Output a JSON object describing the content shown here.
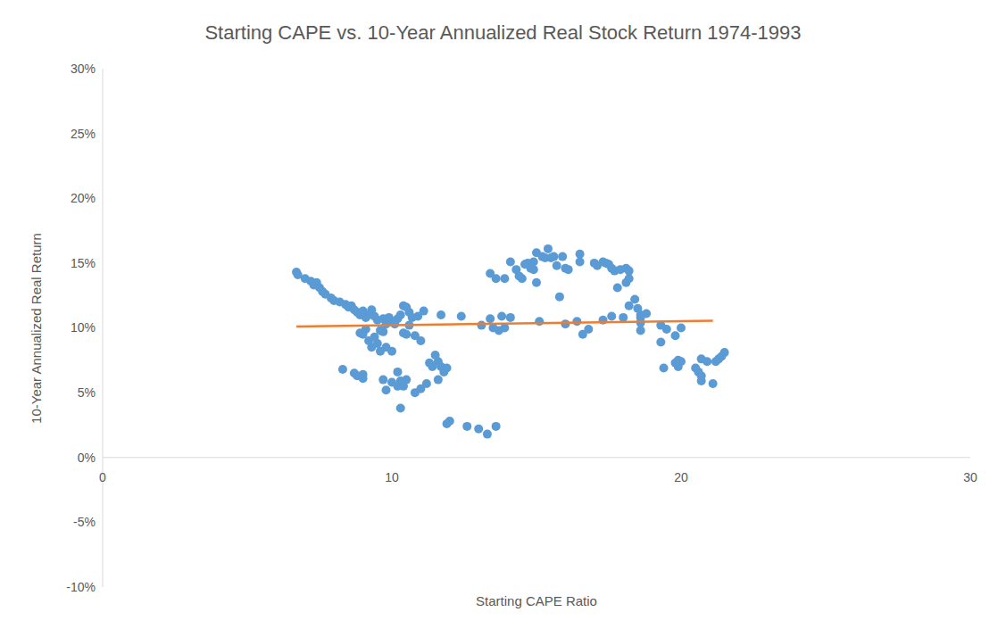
{
  "chart_data": {
    "type": "scatter",
    "title": "Starting CAPE vs. 10-Year Annualized Real Stock Return 1974-1993",
    "x_label": "Starting CAPE Ratio",
    "y_label": "10-Year Annualized Real Return",
    "xlim": [
      0,
      30
    ],
    "xticks": [
      0,
      10,
      20,
      30
    ],
    "ylim": [
      -10,
      30
    ],
    "yticks": [
      {
        "value": -10,
        "label": "-10%"
      },
      {
        "value": -5,
        "label": "-5%"
      },
      {
        "value": 0,
        "label": "0%"
      },
      {
        "value": 5,
        "label": "5%"
      },
      {
        "value": 10,
        "label": "10%"
      },
      {
        "value": 15,
        "label": "15%"
      },
      {
        "value": 20,
        "label": "20%"
      },
      {
        "value": 25,
        "label": "25%"
      },
      {
        "value": 30,
        "label": "30%"
      }
    ],
    "grid": false,
    "series": [
      {
        "type": "scatter",
        "color": "#5b9bd5",
        "marker": "circle",
        "x": [
          6.7,
          6.75,
          7.0,
          7.2,
          7.3,
          7.4,
          7.5,
          7.6,
          7.7,
          7.9,
          8.0,
          8.2,
          8.4,
          8.5,
          8.6,
          8.7,
          8.8,
          8.9,
          9.0,
          9.1,
          9.2,
          9.3,
          9.4,
          9.5,
          9.7,
          9.9,
          10.0,
          10.2,
          10.3,
          10.4,
          10.5,
          10.6,
          10.7,
          10.9,
          11.1,
          10.1,
          9.8,
          9.6,
          8.9,
          9.0,
          9.1,
          9.2,
          9.3,
          9.5,
          9.6,
          9.4,
          9.8,
          10.0,
          9.7,
          10.4,
          10.5,
          10.8,
          11.0,
          10.6,
          8.3,
          8.7,
          8.8,
          9.0,
          9.0,
          9.7,
          9.8,
          10.0,
          10.2,
          10.3,
          10.2,
          10.4,
          10.5,
          10.3,
          10.8,
          11.0,
          11.2,
          11.3,
          11.4,
          11.5,
          11.6,
          11.7,
          11.6,
          11.8,
          11.9,
          11.9,
          12.0,
          12.6,
          13.0,
          13.3,
          13.6,
          11.7,
          12.4,
          13.1,
          13.4,
          13.5,
          13.7,
          13.8,
          13.9,
          14.1,
          13.4,
          13.6,
          13.9,
          14.1,
          14.3,
          14.4,
          14.5,
          14.6,
          14.7,
          14.8,
          14.9,
          14.9,
          15.0,
          15.0,
          15.2,
          15.3,
          15.4,
          15.5,
          15.6,
          15.7,
          15.8,
          15.9,
          16.0,
          16.1,
          15.1,
          16.0,
          16.4,
          16.5,
          16.5,
          16.6,
          16.8,
          17.0,
          17.1,
          17.3,
          17.4,
          17.5,
          17.6,
          17.7,
          17.9,
          17.3,
          17.8,
          17.6,
          18.0,
          18.1,
          18.2,
          18.1,
          18.2,
          18.2,
          18.4,
          18.5,
          18.6,
          18.6,
          18.6,
          18.8,
          18.6,
          19.3,
          19.3,
          19.4,
          19.5,
          19.8,
          19.9,
          19.8,
          20.0,
          19.9,
          20.0,
          20.5,
          20.6,
          20.7,
          20.7,
          20.7,
          20.9,
          21.1,
          21.2,
          21.3,
          21.4,
          21.5
        ],
        "values": [
          14.3,
          14.1,
          13.8,
          13.6,
          13.3,
          13.5,
          13.1,
          12.8,
          12.6,
          12.3,
          12.1,
          12.0,
          11.8,
          11.6,
          11.7,
          11.4,
          11.2,
          11.0,
          11.3,
          10.8,
          11.0,
          11.4,
          10.9,
          10.6,
          10.7,
          10.8,
          10.5,
          10.7,
          11.0,
          11.7,
          11.6,
          11.2,
          10.8,
          10.9,
          11.3,
          10.3,
          10.3,
          9.8,
          9.6,
          9.5,
          9.9,
          9.0,
          8.5,
          8.8,
          8.2,
          9.3,
          8.5,
          8.2,
          9.7,
          9.6,
          9.5,
          9.4,
          9.0,
          10.2,
          6.8,
          6.5,
          6.3,
          6.4,
          6.1,
          6.0,
          5.2,
          5.8,
          5.5,
          5.9,
          6.6,
          5.5,
          6.0,
          3.8,
          5.0,
          5.3,
          5.7,
          7.3,
          7.0,
          7.9,
          7.4,
          7.0,
          6.0,
          6.6,
          6.9,
          2.6,
          2.8,
          2.4,
          2.2,
          1.8,
          2.4,
          11.0,
          10.9,
          10.2,
          10.7,
          10.0,
          9.8,
          10.9,
          10.0,
          10.8,
          14.2,
          13.8,
          13.8,
          15.1,
          14.5,
          14.0,
          13.8,
          14.9,
          15.0,
          14.6,
          14.5,
          15.1,
          13.5,
          15.8,
          15.5,
          15.4,
          16.1,
          15.4,
          15.5,
          14.8,
          12.4,
          15.5,
          14.6,
          14.5,
          10.5,
          10.3,
          10.5,
          15.7,
          15.1,
          9.5,
          9.9,
          15.0,
          14.8,
          15.1,
          15.0,
          14.9,
          14.6,
          14.4,
          14.5,
          10.6,
          13.1,
          10.9,
          10.8,
          13.5,
          13.8,
          14.6,
          14.4,
          11.7,
          12.2,
          11.5,
          11.0,
          10.4,
          9.8,
          11.1,
          10.8,
          10.2,
          8.9,
          6.9,
          9.9,
          7.3,
          7.5,
          9.4,
          10.0,
          7.0,
          7.4,
          6.9,
          6.6,
          6.3,
          5.9,
          7.6,
          7.4,
          5.7,
          7.4,
          7.6,
          7.8,
          8.1
        ]
      },
      {
        "type": "line",
        "color": "#ed7d31",
        "line_style": "solid",
        "x": [
          6.7,
          21.1
        ],
        "values": [
          10.1,
          10.55
        ]
      }
    ]
  }
}
